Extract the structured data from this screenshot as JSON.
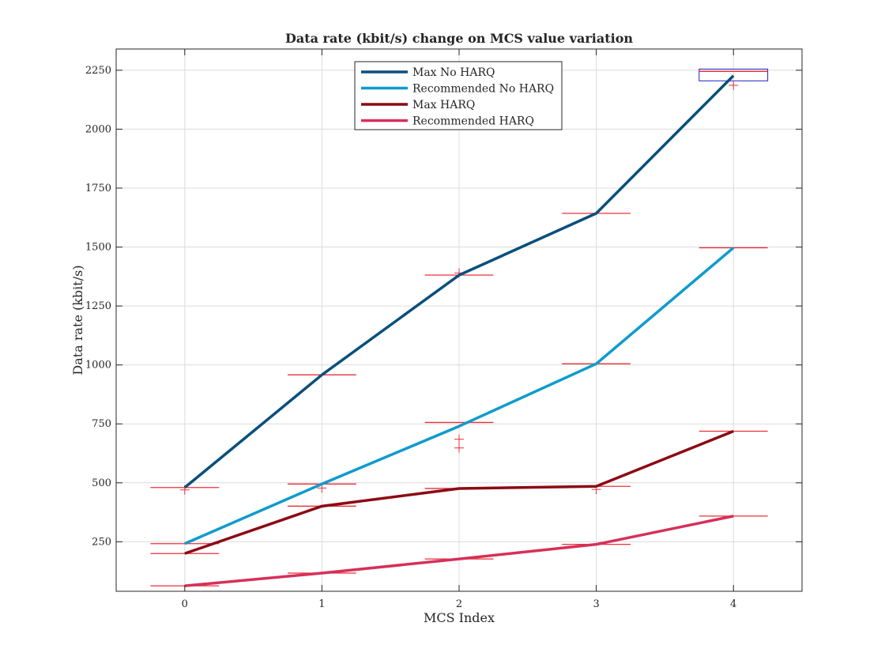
{
  "chart_data": {
    "type": "line",
    "title": "Data rate (kbit/s) change on MCS value variation",
    "xlabel": "MCS Index",
    "ylabel": "Data rate (kbit/s)",
    "x": [
      0,
      1,
      2,
      3,
      4
    ],
    "x_ticks": [
      "0",
      "1",
      "2",
      "3",
      "4"
    ],
    "y_ticks": [
      "250",
      "500",
      "750",
      "1000",
      "1250",
      "1500",
      "1750",
      "2000",
      "2250"
    ],
    "xlim": [
      -0.5,
      4.5
    ],
    "ylim": [
      40,
      2340
    ],
    "grid": true,
    "legend_position": "top-center",
    "series": [
      {
        "name": "Max No HARQ",
        "color": "#0b4f7c",
        "values": [
          480,
          958,
          1381,
          1643,
          2227
        ]
      },
      {
        "name": "Recommended No HARQ",
        "color": "#0f9bcd",
        "values": [
          242,
          495,
          740,
          1005,
          1497
        ]
      },
      {
        "name": "Max HARQ",
        "color": "#8b0a14",
        "values": [
          200,
          401,
          476,
          485,
          719
        ]
      },
      {
        "name": "Recommended HARQ",
        "color": "#d6305a",
        "values": [
          63,
          117,
          177,
          239,
          359
        ]
      }
    ],
    "boxplot_medians": {
      "color": "#e8303a",
      "box_color": "#2020c8",
      "groups": [
        {
          "x": 0,
          "medians": [
            480,
            242,
            200,
            63
          ]
        },
        {
          "x": 1,
          "medians": [
            958,
            495,
            401,
            117
          ]
        },
        {
          "x": 2,
          "medians": [
            1381,
            756,
            476,
            177
          ]
        },
        {
          "x": 3,
          "medians": [
            1643,
            1005,
            485,
            239
          ]
        },
        {
          "x": 4,
          "medians": [
            2245,
            1497,
            719,
            359
          ],
          "box": [
            2205,
            2255
          ]
        }
      ],
      "outliers": [
        {
          "x": 0,
          "y": 470
        },
        {
          "x": 1,
          "y": 478
        },
        {
          "x": 2,
          "y": 1390
        },
        {
          "x": 2,
          "y": 685
        },
        {
          "x": 2,
          "y": 648
        },
        {
          "x": 3,
          "y": 472
        },
        {
          "x": 4,
          "y": 2186
        }
      ]
    }
  }
}
